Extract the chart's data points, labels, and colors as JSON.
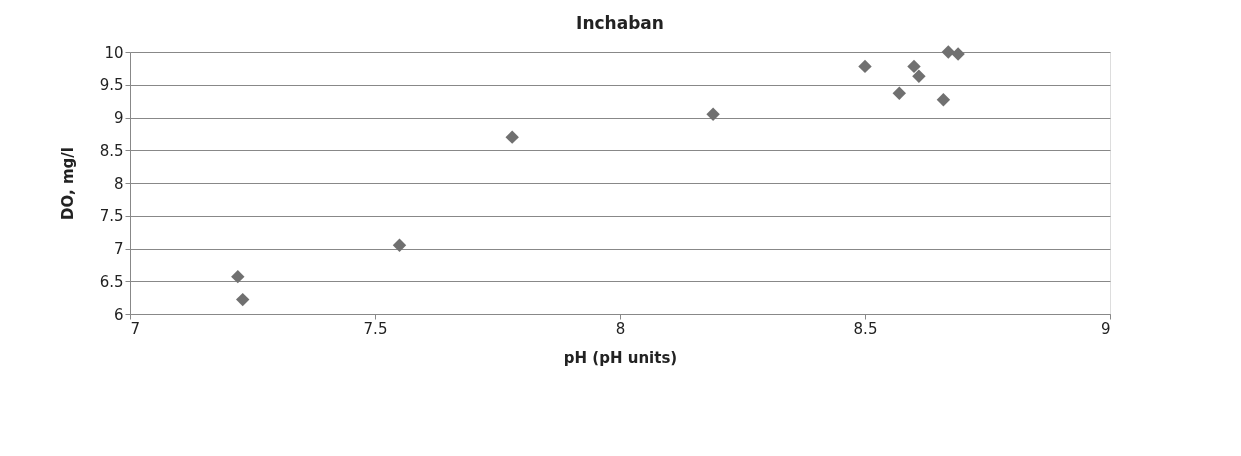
{
  "chart_data": {
    "type": "scatter",
    "title": "Inchaban",
    "xlabel": "pH (pH units)",
    "ylabel": "DO, mg/l",
    "x": [
      7.22,
      7.23,
      7.55,
      7.78,
      8.19,
      8.5,
      8.57,
      8.6,
      8.61,
      8.66,
      8.67,
      8.69
    ],
    "series": [
      {
        "color": "#707070",
        "values": [
          6.57,
          6.22,
          7.05,
          8.7,
          9.05,
          9.78,
          9.37,
          9.78,
          9.63,
          9.27,
          10.0,
          9.97
        ]
      }
    ],
    "xlim": [
      7,
      9
    ],
    "xticks": [
      7,
      7.5,
      8,
      8.5,
      9
    ],
    "ylim": [
      6,
      10
    ],
    "yticks": [
      6,
      6.5,
      7,
      7.5,
      8,
      8.5,
      9,
      9.5,
      10
    ],
    "grid": "y",
    "marker": "diamond",
    "legend": false
  }
}
